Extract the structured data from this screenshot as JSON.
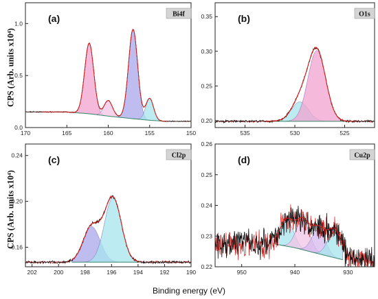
{
  "figure": {
    "y_axis_label_top": "CPS (Arb. units x10⁴)",
    "y_axis_label_bottom": "CPS (Arb. units x10⁴)",
    "x_axis_label": "Binding energy (eV)"
  },
  "chart_data": [
    {
      "type": "line",
      "panel_label": "(a)",
      "element_label": "Bi4f",
      "xlim": [
        170,
        150
      ],
      "ylim": [
        0,
        1.2
      ],
      "x_ticks": [
        "170",
        "165",
        "160",
        "155",
        "150"
      ],
      "y_ticks": [
        "0.0",
        "0.5",
        "1.0"
      ],
      "background": {
        "x": [
          168,
          165,
          162,
          160,
          157,
          155,
          153
        ],
        "y": [
          0.15,
          0.15,
          0.13,
          0.11,
          0.085,
          0.07,
          0.06
        ]
      },
      "peaks": [
        {
          "center": 162.3,
          "fwhm": 1.3,
          "height": 0.68,
          "color": "#f2a3cf"
        },
        {
          "center": 160.0,
          "fwhm": 1.2,
          "height": 0.15,
          "color": "#f2c4e6"
        },
        {
          "center": 157.0,
          "fwhm": 1.3,
          "height": 0.86,
          "color": "#a9a6ea"
        },
        {
          "center": 155.0,
          "fwhm": 1.1,
          "height": 0.21,
          "color": "#a7e4ee"
        }
      ],
      "data_range": [
        170,
        150
      ],
      "noise": 0.004,
      "fit_range": [
        168,
        153
      ]
    },
    {
      "type": "line",
      "panel_label": "(b)",
      "element_label": "O1s",
      "xlim": [
        538,
        522
      ],
      "ylim": [
        0.19,
        0.37
      ],
      "x_ticks": [
        "535",
        "530",
        "525"
      ],
      "y_ticks": [
        "0.20",
        "0.25",
        "0.30",
        "0.35"
      ],
      "background": {
        "x": [
          533,
          530,
          527,
          525
        ],
        "y": [
          0.199,
          0.199,
          0.199,
          0.199
        ]
      },
      "peaks": [
        {
          "center": 529.5,
          "fwhm": 2.0,
          "height": 0.028,
          "color": "#a7e4ee"
        },
        {
          "center": 527.8,
          "fwhm": 2.1,
          "height": 0.102,
          "color": "#f2a3cf"
        }
      ],
      "data_range": [
        538,
        522
      ],
      "noise": 0.0016,
      "fit_range": [
        533,
        524
      ]
    },
    {
      "type": "line",
      "panel_label": "(c)",
      "element_label": "Cl2p",
      "xlim": [
        202.5,
        190
      ],
      "ylim": [
        0.143,
        0.25
      ],
      "x_ticks": [
        "202",
        "200",
        "198",
        "196",
        "194",
        "192",
        "190"
      ],
      "y_ticks": [
        "0.16",
        "0.20",
        "0.24"
      ],
      "background": {
        "x": [
          199,
          197,
          195,
          194
        ],
        "y": [
          0.147,
          0.147,
          0.147,
          0.147
        ]
      },
      "peaks": [
        {
          "center": 197.5,
          "fwhm": 1.5,
          "height": 0.031,
          "color": "#a9a6ea"
        },
        {
          "center": 195.9,
          "fwhm": 1.5,
          "height": 0.056,
          "color": "#a7e4ee"
        }
      ],
      "data_range": [
        202.5,
        190
      ],
      "noise": 0.0012,
      "fit_range": [
        199,
        194
      ]
    },
    {
      "type": "line",
      "panel_label": "(d)",
      "element_label": "Cu2p",
      "xlim": [
        955,
        925
      ],
      "ylim": [
        0.22,
        0.26
      ],
      "x_ticks": [
        "950",
        "940",
        "930"
      ],
      "y_ticks": [
        "0.22",
        "0.23",
        "0.24",
        "0.25",
        "0.26"
      ],
      "background": {
        "x": [
          944,
          940,
          935,
          931
        ],
        "y": [
          0.2275,
          0.2262,
          0.224,
          0.2223
        ]
      },
      "peaks": [
        {
          "center": 941.5,
          "fwhm": 3.0,
          "height": 0.0085,
          "color": "#a7e4ee"
        },
        {
          "center": 938.5,
          "fwhm": 3.0,
          "height": 0.0095,
          "color": "#f2c4e6"
        },
        {
          "center": 935.5,
          "fwhm": 3.0,
          "height": 0.008,
          "color": "#d6b9ef"
        },
        {
          "center": 932.5,
          "fwhm": 3.0,
          "height": 0.009,
          "color": "#a7e4ee"
        }
      ],
      "data_range": [
        955,
        925
      ],
      "noise": 0.0045,
      "fit_range": [
        944,
        931
      ]
    }
  ]
}
